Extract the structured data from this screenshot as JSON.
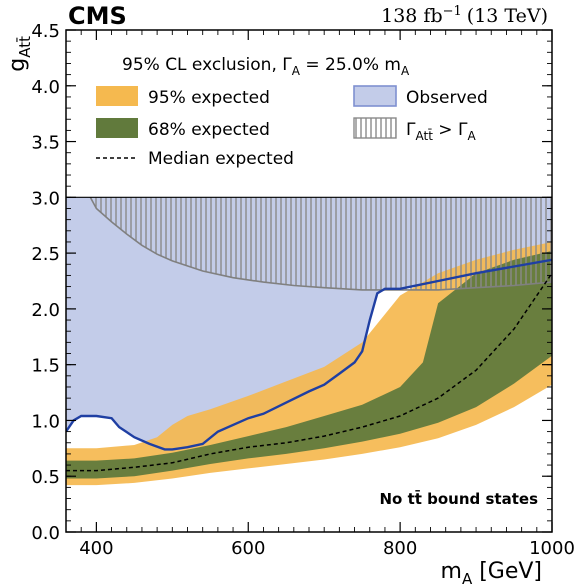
{
  "chart_data": {
    "type": "area",
    "experiment": "CMS",
    "lumi_label": "138 fb",
    "lumi_exp": "−1",
    "energy_label": "(13 TeV)",
    "legend_title": "95% CL exclusion, Γ",
    "legend_title_sub": "A",
    "legend_title_tail": " =  25.0% m",
    "legend_title_tail_sub": "A",
    "annotation": "No tt̄ bound states",
    "xlabel": "m",
    "xlabel_sub": "A",
    "xlabel_unit": " [GeV]",
    "ylabel": "g",
    "ylabel_sub": "Att̄",
    "xlim": [
      360,
      1000
    ],
    "ylim": [
      0.0,
      4.5
    ],
    "x_ticks": [
      400,
      600,
      800,
      1000
    ],
    "y_ticks": [
      0.0,
      0.5,
      1.0,
      1.5,
      2.0,
      2.5,
      3.0,
      3.5,
      4.0,
      4.5
    ],
    "colors": {
      "band95": "#f5b94f",
      "band68": "#617a3c",
      "observed_fill": "#c3cce9",
      "observed_line": "#1f3fa3",
      "median": "#000000",
      "width_line": "#808080"
    },
    "legend": [
      {
        "key": "band95",
        "label": "95% expected"
      },
      {
        "key": "band68",
        "label": "68% expected"
      },
      {
        "key": "median",
        "label": "Median expected"
      },
      {
        "key": "observed",
        "label": "Observed"
      },
      {
        "key": "width",
        "label": "Γ",
        "sub": "Att̄",
        "tail": " > Γ",
        "tail_sub": "A"
      }
    ],
    "series": [
      {
        "key": "band95_lower",
        "x": [
          360,
          400,
          450,
          500,
          550,
          600,
          650,
          700,
          750,
          800,
          850,
          900,
          950,
          1000
        ],
        "y": [
          0.42,
          0.42,
          0.44,
          0.48,
          0.53,
          0.57,
          0.61,
          0.65,
          0.7,
          0.76,
          0.84,
          0.96,
          1.12,
          1.32
        ]
      },
      {
        "key": "band95_upper",
        "x": [
          360,
          400,
          450,
          480,
          500,
          520,
          550,
          600,
          650,
          700,
          750,
          800,
          850,
          900,
          950,
          1000
        ],
        "y": [
          0.75,
          0.75,
          0.78,
          0.85,
          0.96,
          1.04,
          1.1,
          1.22,
          1.35,
          1.48,
          1.7,
          2.12,
          2.32,
          2.44,
          2.53,
          2.6
        ]
      },
      {
        "key": "band68_lower",
        "x": [
          360,
          400,
          450,
          500,
          550,
          600,
          650,
          700,
          750,
          800,
          850,
          900,
          950,
          1000
        ],
        "y": [
          0.48,
          0.48,
          0.5,
          0.55,
          0.61,
          0.66,
          0.7,
          0.75,
          0.81,
          0.88,
          0.98,
          1.12,
          1.33,
          1.58
        ]
      },
      {
        "key": "band68_upper",
        "x": [
          360,
          400,
          450,
          500,
          550,
          600,
          650,
          700,
          750,
          800,
          830,
          850,
          900,
          950,
          1000
        ],
        "y": [
          0.64,
          0.64,
          0.66,
          0.71,
          0.78,
          0.86,
          0.94,
          1.04,
          1.14,
          1.3,
          1.52,
          2.05,
          2.32,
          2.44,
          2.52
        ]
      },
      {
        "key": "median",
        "x": [
          360,
          400,
          450,
          500,
          550,
          600,
          650,
          700,
          750,
          800,
          850,
          900,
          950,
          1000
        ],
        "y": [
          0.55,
          0.55,
          0.58,
          0.62,
          0.7,
          0.76,
          0.8,
          0.86,
          0.94,
          1.04,
          1.2,
          1.45,
          1.82,
          2.32
        ]
      },
      {
        "key": "observed",
        "x": [
          360,
          370,
          380,
          400,
          420,
          430,
          450,
          470,
          490,
          500,
          520,
          540,
          560,
          600,
          620,
          650,
          680,
          700,
          720,
          740,
          750,
          760,
          770,
          780,
          800,
          850,
          900,
          950,
          1000
        ],
        "y": [
          0.9,
          1.0,
          1.04,
          1.04,
          1.02,
          0.94,
          0.85,
          0.79,
          0.74,
          0.74,
          0.76,
          0.79,
          0.9,
          1.02,
          1.06,
          1.16,
          1.26,
          1.32,
          1.42,
          1.52,
          1.62,
          1.9,
          2.14,
          2.18,
          2.18,
          2.25,
          2.32,
          2.38,
          2.44
        ]
      },
      {
        "key": "width_limit",
        "x": [
          392,
          400,
          420,
          440,
          460,
          480,
          500,
          540,
          580,
          620,
          660,
          700,
          750,
          800,
          850,
          900,
          950,
          1000
        ],
        "y": [
          3.0,
          2.9,
          2.78,
          2.67,
          2.57,
          2.49,
          2.43,
          2.34,
          2.28,
          2.24,
          2.21,
          2.19,
          2.17,
          2.17,
          2.17,
          2.19,
          2.21,
          2.24
        ]
      }
    ]
  }
}
